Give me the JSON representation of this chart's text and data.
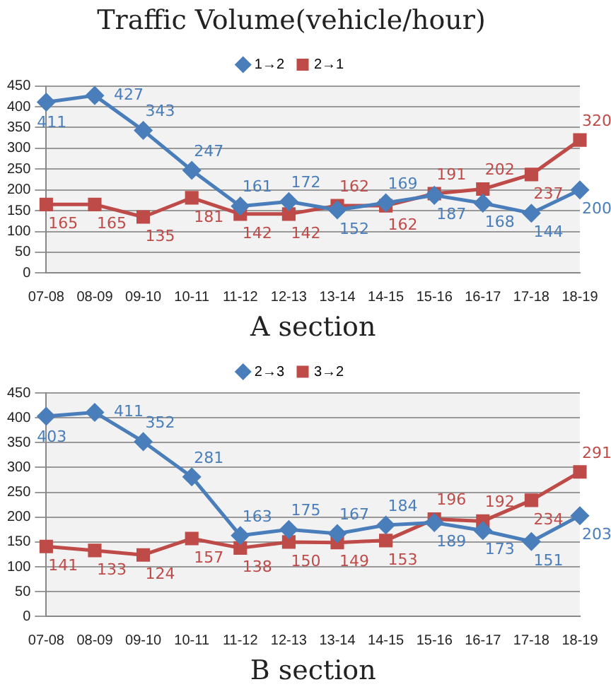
{
  "chart_data": [
    {
      "type": "line",
      "title": "Traffic Volume(vehicle/hour)",
      "xlabel": "A section",
      "categories": [
        "07-08",
        "08-09",
        "09-10",
        "10-11",
        "11-12",
        "12-13",
        "13-14",
        "14-15",
        "15-16",
        "16-17",
        "17-18",
        "18-19"
      ],
      "series": [
        {
          "name": "1→2",
          "color": "#4a7ebb",
          "marker": "diamond",
          "values": [
            411,
            427,
            343,
            247,
            161,
            172,
            152,
            169,
            187,
            168,
            144,
            200
          ]
        },
        {
          "name": "2→1",
          "color": "#be4b48",
          "marker": "square",
          "values": [
            165,
            165,
            135,
            181,
            142,
            142,
            162,
            162,
            191,
            202,
            237,
            320
          ]
        }
      ],
      "ylim": [
        0,
        450
      ],
      "yticks": [
        0,
        50,
        100,
        150,
        200,
        250,
        300,
        350,
        400,
        450
      ],
      "grid": "y",
      "legend": "top",
      "data_labels": true
    },
    {
      "type": "line",
      "xlabel": "B section",
      "categories": [
        "07-08",
        "08-09",
        "09-10",
        "10-11",
        "11-12",
        "12-13",
        "13-14",
        "14-15",
        "15-16",
        "16-17",
        "17-18",
        "18-19"
      ],
      "series": [
        {
          "name": "2→3",
          "color": "#4a7ebb",
          "marker": "diamond",
          "values": [
            403,
            411,
            352,
            281,
            163,
            175,
            167,
            184,
            189,
            173,
            151,
            203
          ]
        },
        {
          "name": "3→2",
          "color": "#be4b48",
          "marker": "square",
          "values": [
            141,
            133,
            124,
            157,
            138,
            150,
            149,
            153,
            196,
            192,
            234,
            291
          ]
        }
      ],
      "ylim": [
        0,
        450
      ],
      "yticks": [
        0,
        50,
        100,
        150,
        200,
        250,
        300,
        350,
        400,
        450
      ],
      "grid": "y",
      "legend": "top",
      "data_labels": true
    }
  ]
}
